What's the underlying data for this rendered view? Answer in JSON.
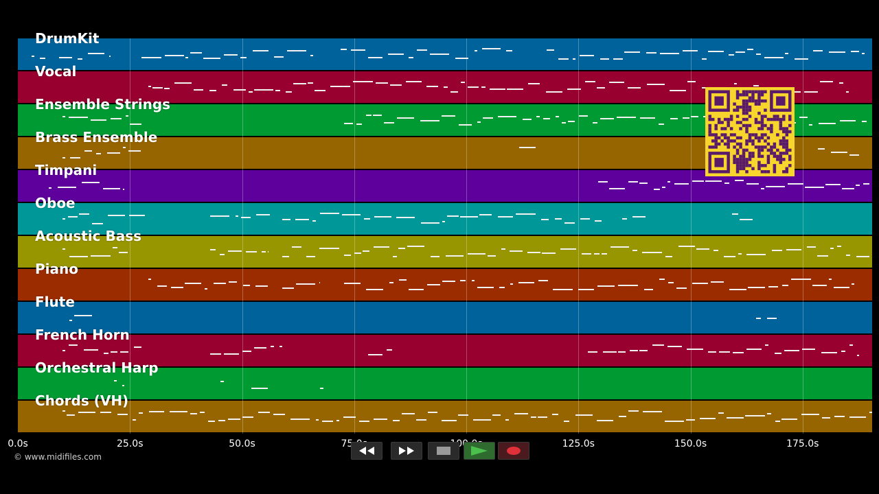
{
  "tracks": [
    {
      "name": "DrumKit",
      "color": "#00629b"
    },
    {
      "name": "Vocal",
      "color": "#97002f"
    },
    {
      "name": "Ensemble Strings",
      "color": "#009a32"
    },
    {
      "name": "Brass Ensemble",
      "color": "#976500"
    },
    {
      "name": "Timpani",
      "color": "#5e009b"
    },
    {
      "name": "Oboe",
      "color": "#009798"
    },
    {
      "name": "Acoustic Bass",
      "color": "#989600"
    },
    {
      "name": "Piano",
      "color": "#9b2c00"
    },
    {
      "name": "Flute",
      "color": "#00629b"
    },
    {
      "name": "French Horn",
      "color": "#97002f"
    },
    {
      "name": "Orchestral Harp",
      "color": "#009a32"
    },
    {
      "name": "Chords (VH)",
      "color": "#976500"
    }
  ],
  "timeline": {
    "ticks": [
      {
        "seconds": 0,
        "label": "0.0s"
      },
      {
        "seconds": 25,
        "label": "25.0s"
      },
      {
        "seconds": 50,
        "label": "50.0s"
      },
      {
        "seconds": 75,
        "label": "75.0s"
      },
      {
        "seconds": 100,
        "label": "100.0s"
      },
      {
        "seconds": 125,
        "label": "125.0s"
      },
      {
        "seconds": 150,
        "label": "150.0s"
      },
      {
        "seconds": 175,
        "label": "175.0s"
      }
    ],
    "duration_seconds": 190.5
  },
  "copyright": "© www.midifiles.com",
  "transport": {
    "rewind_icon": "rewind-icon",
    "forward_icon": "fast-forward-icon",
    "stop_icon": "stop-icon",
    "play_icon": "play-icon",
    "record_icon": "record-icon",
    "play_color": "#3fae3f",
    "record_color": "#e0303a"
  },
  "qr_code": {
    "icon": "qr-code-icon",
    "color": "#f7d52c",
    "dark": "#5a1a6a"
  }
}
